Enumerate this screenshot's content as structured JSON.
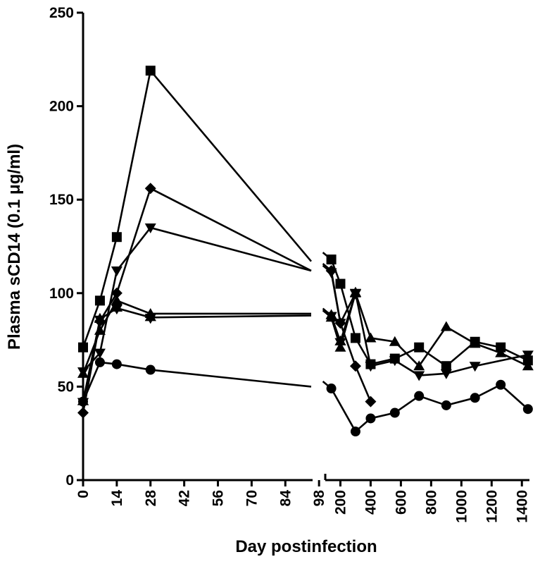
{
  "chart_data": {
    "type": "line",
    "xlabel": "Day postinfection",
    "ylabel": "Plasma sCD14 (0.1 μg/ml)",
    "ylim": [
      0,
      250
    ],
    "yticks": [
      0,
      50,
      100,
      150,
      200,
      250
    ],
    "x_segments": [
      {
        "xlim": [
          0,
          100
        ],
        "xticks": [
          0,
          14,
          28,
          42,
          56,
          70,
          84,
          98
        ]
      },
      {
        "xlim": [
          100,
          1450
        ],
        "xticks": [
          200,
          400,
          600,
          800,
          1000,
          1200,
          1400
        ]
      }
    ],
    "series": [
      {
        "marker": "square",
        "early": [
          [
            0,
            71
          ],
          [
            7,
            96
          ],
          [
            14,
            130
          ],
          [
            28,
            219
          ]
        ],
        "early_trend_end": [
          100,
          117
        ],
        "late": [
          [
            140,
            118
          ],
          [
            200,
            105
          ],
          [
            300,
            76
          ],
          [
            400,
            62
          ],
          [
            560,
            65
          ],
          [
            720,
            71
          ],
          [
            900,
            61
          ],
          [
            1090,
            74
          ],
          [
            1260,
            71
          ],
          [
            1440,
            64
          ]
        ]
      },
      {
        "marker": "diamond",
        "early": [
          [
            0,
            36
          ],
          [
            7,
            85
          ],
          [
            14,
            100
          ],
          [
            28,
            156
          ]
        ],
        "early_trend_end": [
          100,
          112
        ],
        "late": [
          [
            140,
            112
          ],
          [
            200,
            84
          ],
          [
            300,
            61
          ],
          [
            400,
            42
          ]
        ]
      },
      {
        "marker": "triangle-down",
        "early": [
          [
            0,
            58
          ],
          [
            7,
            68
          ],
          [
            14,
            112
          ],
          [
            28,
            135
          ]
        ],
        "early_trend_end": [
          100,
          112
        ],
        "late": [
          [
            140,
            111
          ],
          [
            200,
            84
          ],
          [
            300,
            100
          ],
          [
            400,
            61
          ],
          [
            560,
            64
          ],
          [
            720,
            56
          ],
          [
            900,
            57
          ],
          [
            1090,
            61
          ],
          [
            1440,
            67
          ]
        ]
      },
      {
        "marker": "triangle-up",
        "early": [
          [
            0,
            57
          ],
          [
            7,
            80
          ],
          [
            14,
            96
          ],
          [
            28,
            89
          ]
        ],
        "early_trend_end": [
          100,
          89
        ],
        "late": [
          [
            140,
            87
          ],
          [
            200,
            71
          ],
          [
            300,
            100
          ],
          [
            400,
            76
          ],
          [
            560,
            74
          ],
          [
            720,
            61
          ],
          [
            900,
            82
          ],
          [
            1090,
            73
          ],
          [
            1260,
            68
          ],
          [
            1440,
            61
          ]
        ]
      },
      {
        "marker": "star",
        "early": [
          [
            0,
            42
          ],
          [
            7,
            86
          ],
          [
            14,
            92
          ],
          [
            28,
            87
          ]
        ],
        "early_trend_end": [
          100,
          88
        ],
        "late": [
          [
            140,
            88
          ],
          [
            200,
            74
          ],
          [
            300,
            100
          ]
        ]
      },
      {
        "marker": "circle",
        "early": [
          [
            0,
            42
          ],
          [
            7,
            63
          ],
          [
            14,
            62
          ],
          [
            28,
            59
          ]
        ],
        "early_trend_end": [
          100,
          50
        ],
        "late": [
          [
            140,
            49
          ],
          [
            300,
            26
          ],
          [
            400,
            33
          ],
          [
            560,
            36
          ],
          [
            720,
            45
          ],
          [
            900,
            40
          ],
          [
            1090,
            44
          ],
          [
            1260,
            51
          ],
          [
            1440,
            38
          ]
        ]
      }
    ]
  }
}
